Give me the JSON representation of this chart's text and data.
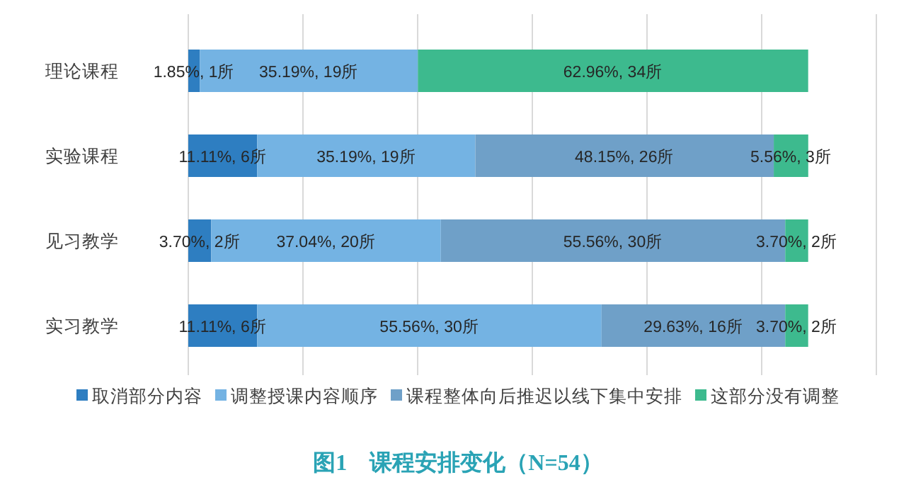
{
  "chart_data": {
    "type": "bar",
    "orientation": "horizontal",
    "stacked": true,
    "title": "图1　课程安排变化（N=54）",
    "categories": [
      "理论课程",
      "实验课程",
      "见习教学",
      "实习教学"
    ],
    "xlim": [
      0,
      111
    ],
    "xticks": [
      {
        "value": 0,
        "label": null
      },
      {
        "value": 18.5,
        "label": null
      },
      {
        "value": 37,
        "label": null
      },
      {
        "value": 55.5,
        "label": null
      },
      {
        "value": 74,
        "label": null
      },
      {
        "value": 92.5,
        "label": null
      },
      {
        "value": 111,
        "label": null
      }
    ],
    "grid": "x",
    "legend": "bottom",
    "tick_labels": "y",
    "series": [
      {
        "name": "取消部分内容",
        "color": "#2e7ec1",
        "values": [
          1.85,
          11.11,
          3.7,
          11.11
        ],
        "value_labels": [
          "1.85%, 1所",
          "11.11%, 6所",
          "3.70%, 2所",
          "11.11%, 6所"
        ]
      },
      {
        "name": "调整授课内容顺序",
        "color": "#74b3e3",
        "values": [
          35.19,
          35.19,
          37.04,
          55.56
        ],
        "value_labels": [
          "35.19%, 19所",
          "35.19%, 19所",
          "37.04%, 20所",
          "55.56%, 30所"
        ]
      },
      {
        "name": "课程整体向后推迟以线下集中安排",
        "color": "#6fa0c8",
        "values": [
          0,
          48.15,
          55.56,
          29.63
        ],
        "value_labels": [
          null,
          "48.15%, 26所",
          "55.56%, 30所",
          "29.63%, 16所"
        ]
      },
      {
        "name": "这部分没有调整",
        "color": "#3dba8e",
        "values": [
          62.96,
          5.56,
          3.7,
          3.7
        ],
        "value_labels": [
          "62.96%, 34所",
          "5.56%, 3所",
          "3.70%, 2所",
          "3.70%, 2所"
        ]
      }
    ]
  }
}
